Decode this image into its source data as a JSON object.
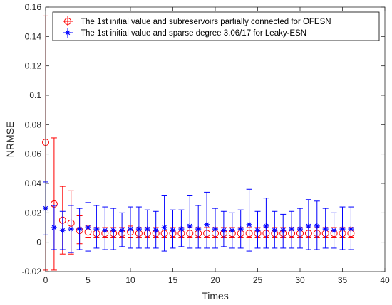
{
  "chart_data": {
    "type": "scatter",
    "xlabel": "Times",
    "ylabel": "NRMSE",
    "xlim": [
      0,
      40
    ],
    "ylim": [
      -0.02,
      0.16
    ],
    "xticks": [
      0,
      5,
      10,
      15,
      20,
      25,
      30,
      35,
      40
    ],
    "yticks": [
      -0.02,
      0,
      0.02,
      0.04,
      0.06,
      0.08,
      0.1,
      0.12,
      0.14,
      0.16
    ],
    "ytick_labels": [
      "-0.02",
      "0",
      "0.02",
      "0.04",
      "0.06",
      "0.08",
      "0.1",
      "0.12",
      "0.14",
      "0.16"
    ],
    "grid": false,
    "legend_position": "top",
    "error_bars": true,
    "series": [
      {
        "name": "The 1st initial value and subreservoirs partially connected for OFESN",
        "color": "#ff0000",
        "marker": "circle",
        "x": [
          0,
          1,
          2,
          3,
          4,
          5,
          6,
          7,
          8,
          9,
          10,
          11,
          12,
          13,
          14,
          15,
          16,
          17,
          18,
          19,
          20,
          21,
          22,
          23,
          24,
          25,
          26,
          27,
          28,
          29,
          30,
          31,
          32,
          33,
          34,
          35,
          36
        ],
        "y": [
          0.068,
          0.026,
          0.015,
          0.013,
          0.008,
          0.007,
          0.006,
          0.006,
          0.006,
          0.006,
          0.007,
          0.006,
          0.006,
          0.006,
          0.006,
          0.006,
          0.006,
          0.006,
          0.006,
          0.006,
          0.006,
          0.006,
          0.006,
          0.006,
          0.006,
          0.006,
          0.006,
          0.006,
          0.006,
          0.006,
          0.006,
          0.006,
          0.006,
          0.006,
          0.006,
          0.006,
          0.006
        ],
        "y_lower": [
          -0.019,
          -0.019,
          -0.008,
          -0.008,
          -0.001,
          0.003,
          0.003,
          0.003,
          0.003,
          0.003,
          0.003,
          0.003,
          0.003,
          0.003,
          0.003,
          0.003,
          0.003,
          0.003,
          0.003,
          0.003,
          0.003,
          0.003,
          0.003,
          0.003,
          0.003,
          0.003,
          0.003,
          0.003,
          0.003,
          0.003,
          0.003,
          0.003,
          0.003,
          0.003,
          0.003,
          0.003,
          0.003
        ],
        "y_upper": [
          0.154,
          0.071,
          0.038,
          0.035,
          0.018,
          0.011,
          0.01,
          0.01,
          0.01,
          0.01,
          0.011,
          0.01,
          0.01,
          0.01,
          0.01,
          0.01,
          0.01,
          0.01,
          0.01,
          0.01,
          0.01,
          0.01,
          0.01,
          0.01,
          0.01,
          0.01,
          0.01,
          0.01,
          0.01,
          0.01,
          0.01,
          0.01,
          0.01,
          0.01,
          0.01,
          0.01,
          0.01
        ]
      },
      {
        "name": "The 1st initial value and sparse degree 3.06/17 for Leaky-ESN",
        "color": "#0000ff",
        "marker": "asterisk",
        "x": [
          0,
          1,
          2,
          3,
          4,
          5,
          6,
          7,
          8,
          9,
          10,
          11,
          12,
          13,
          14,
          15,
          16,
          17,
          18,
          19,
          20,
          21,
          22,
          23,
          24,
          25,
          26,
          27,
          28,
          29,
          30,
          31,
          32,
          33,
          34,
          35,
          36
        ],
        "y": [
          0.023,
          0.01,
          0.008,
          0.009,
          0.009,
          0.01,
          0.009,
          0.008,
          0.008,
          0.008,
          0.009,
          0.009,
          0.009,
          0.008,
          0.01,
          0.008,
          0.009,
          0.011,
          0.009,
          0.012,
          0.009,
          0.008,
          0.008,
          0.009,
          0.012,
          0.008,
          0.011,
          0.008,
          0.008,
          0.009,
          0.009,
          0.011,
          0.011,
          0.009,
          0.008,
          0.009,
          0.009
        ],
        "y_lower": [
          0.005,
          -0.005,
          -0.005,
          -0.007,
          -0.005,
          -0.006,
          -0.004,
          -0.005,
          -0.005,
          -0.003,
          -0.004,
          -0.004,
          -0.004,
          -0.004,
          -0.006,
          -0.004,
          -0.003,
          -0.004,
          -0.004,
          -0.004,
          -0.004,
          -0.003,
          -0.004,
          -0.004,
          -0.006,
          -0.004,
          -0.004,
          -0.004,
          -0.004,
          -0.004,
          -0.004,
          -0.005,
          -0.005,
          -0.004,
          -0.004,
          -0.005,
          -0.005
        ],
        "y_upper": [
          0.041,
          0.025,
          0.021,
          0.025,
          0.023,
          0.027,
          0.025,
          0.024,
          0.023,
          0.02,
          0.024,
          0.024,
          0.022,
          0.021,
          0.032,
          0.022,
          0.022,
          0.032,
          0.025,
          0.034,
          0.023,
          0.021,
          0.02,
          0.022,
          0.036,
          0.021,
          0.03,
          0.021,
          0.019,
          0.021,
          0.023,
          0.029,
          0.028,
          0.023,
          0.02,
          0.024,
          0.024
        ]
      }
    ]
  }
}
